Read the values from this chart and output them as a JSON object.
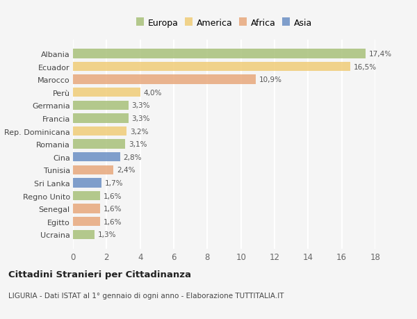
{
  "categories": [
    "Ucraina",
    "Egitto",
    "Senegal",
    "Regno Unito",
    "Sri Lanka",
    "Tunisia",
    "Cina",
    "Romania",
    "Rep. Dominicana",
    "Francia",
    "Germania",
    "Perù",
    "Marocco",
    "Ecuador",
    "Albania"
  ],
  "values": [
    1.3,
    1.6,
    1.6,
    1.6,
    1.7,
    2.4,
    2.8,
    3.1,
    3.2,
    3.3,
    3.3,
    4.0,
    10.9,
    16.5,
    17.4
  ],
  "labels": [
    "1,3%",
    "1,6%",
    "1,6%",
    "1,6%",
    "1,7%",
    "2,4%",
    "2,8%",
    "3,1%",
    "3,2%",
    "3,3%",
    "3,3%",
    "4,0%",
    "10,9%",
    "16,5%",
    "17,4%"
  ],
  "colors": [
    "#a8c07a",
    "#e8a87c",
    "#e8a87c",
    "#a8c07a",
    "#6b8fc4",
    "#e8a87c",
    "#6b8fc4",
    "#a8c07a",
    "#f0cc78",
    "#a8c07a",
    "#a8c07a",
    "#f0cc78",
    "#e8a87c",
    "#f0cc78",
    "#a8c07a"
  ],
  "legend_labels": [
    "Europa",
    "America",
    "Africa",
    "Asia"
  ],
  "legend_colors": [
    "#a8c07a",
    "#f0cc78",
    "#e8a87c",
    "#6b8fc4"
  ],
  "title": "Cittadini Stranieri per Cittadinanza",
  "subtitle": "LIGURIA - Dati ISTAT al 1° gennaio di ogni anno - Elaborazione TUTTITALIA.IT",
  "xlim": [
    0,
    18
  ],
  "xticks": [
    0,
    2,
    4,
    6,
    8,
    10,
    12,
    14,
    16,
    18
  ],
  "background_color": "#f5f5f5",
  "bar_alpha": 0.85,
  "grid_color": "#ffffff"
}
